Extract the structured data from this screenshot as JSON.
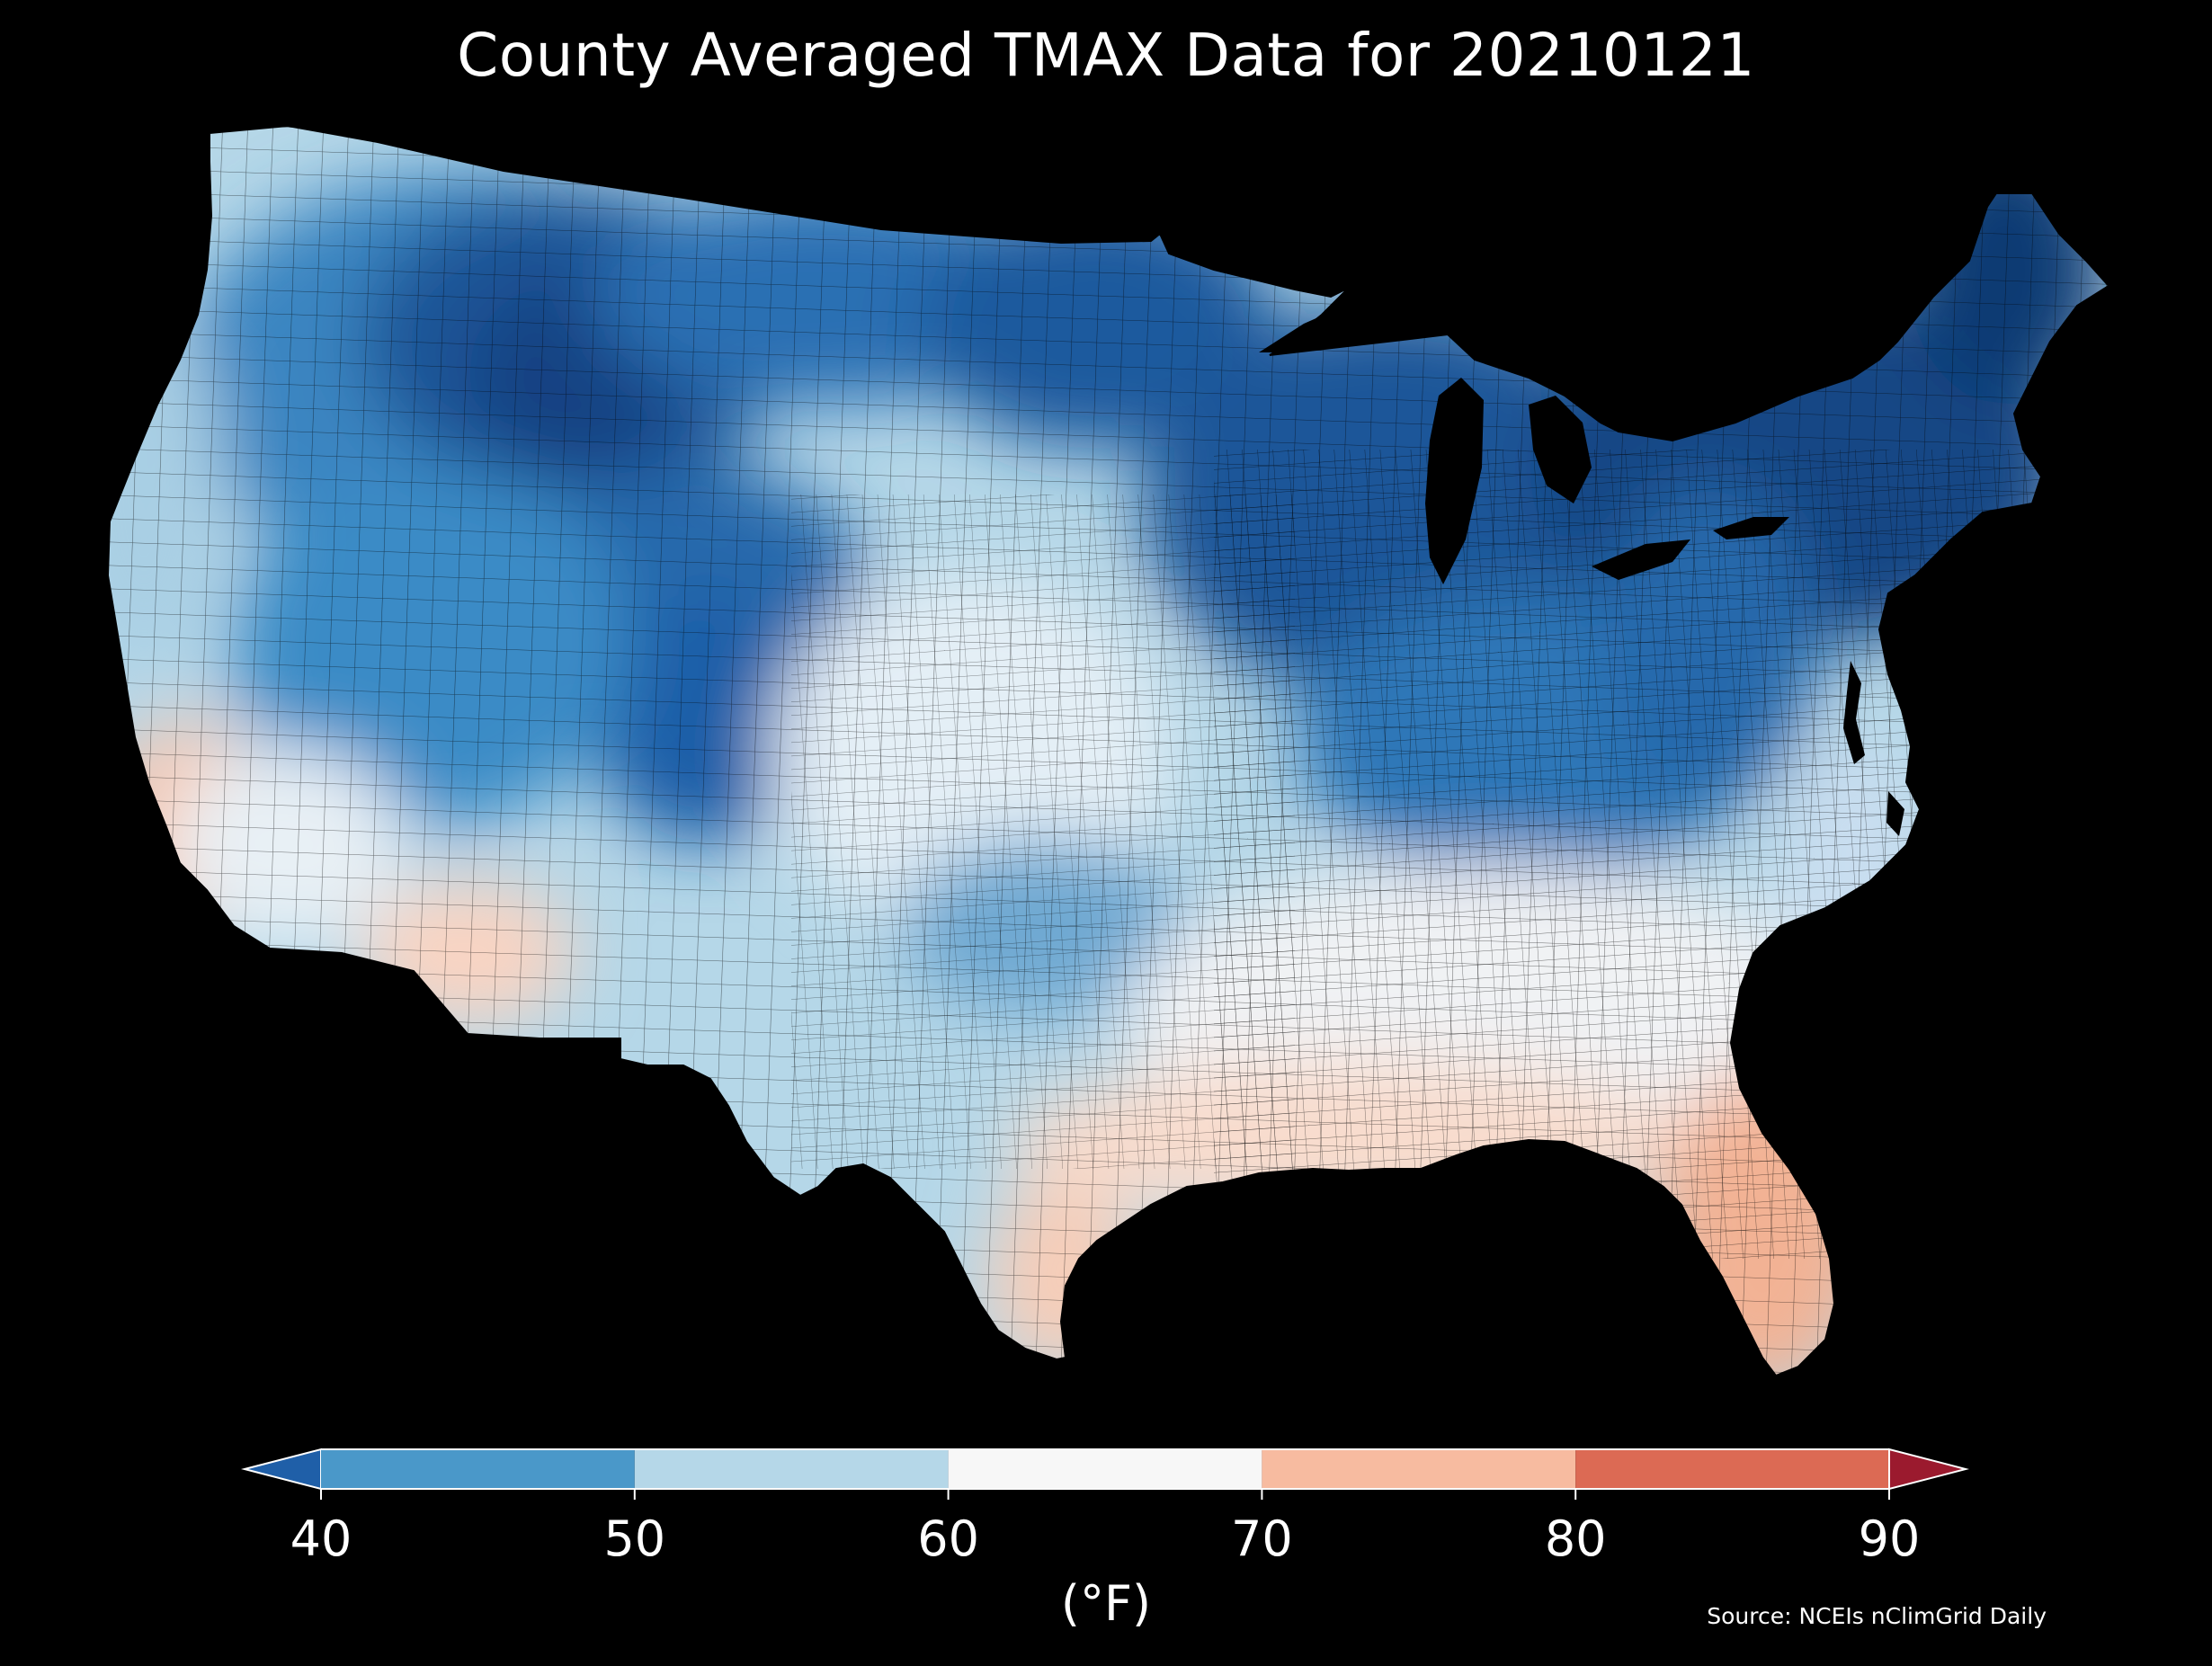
{
  "map": {
    "title": "County Averaged TMAX Data for 20210121",
    "region": "contiguous-united-states",
    "background_color": "#000000",
    "boundary_color": "#000000",
    "source": "Source: NCEIs nClimGrid Daily"
  },
  "colorbar": {
    "label": "(°F)",
    "ticks": [
      "40",
      "50",
      "60",
      "70",
      "80",
      "90"
    ],
    "bins": [
      {
        "range": "<40",
        "color": "#1f5fa8"
      },
      {
        "range": "40-50",
        "color": "#4a98c9"
      },
      {
        "range": "50-60",
        "color": "#b5d7e8"
      },
      {
        "range": "60-70",
        "color": "#f7f7f7"
      },
      {
        "range": "70-80",
        "color": "#f7bba0"
      },
      {
        "range": "80-90",
        "color": "#dc6a54"
      },
      {
        "range": ">90",
        "color": "#9b1a2e"
      }
    ]
  },
  "temperature_regions": [
    {
      "area": "Northern Rockies / northern Plains",
      "level": "<40 °F"
    },
    {
      "area": "Great Lakes / Northeast / Maine",
      "level": "<40 °F"
    },
    {
      "area": "Pacific Northwest / Great Basin / Colorado",
      "level": "40-50 °F"
    },
    {
      "area": "Ohio Valley / Appalachians",
      "level": "40-50 °F"
    },
    {
      "area": "Central Plains / Texas interior",
      "level": "50-60 °F"
    },
    {
      "area": "Arizona desert / lower Mississippi",
      "level": "60-70 °F"
    },
    {
      "area": "Southern California coast / southern Arizona",
      "level": "70-80 °F"
    },
    {
      "area": "Gulf Coast / Florida / south Texas",
      "level": "70-80 °F"
    }
  ]
}
